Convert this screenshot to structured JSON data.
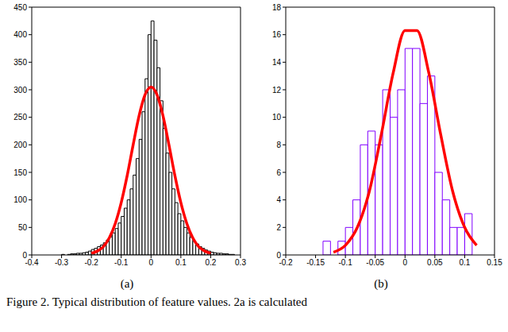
{
  "caption": "Figure 2. Typical distribution of feature values. 2a is calculated",
  "chart_data": [
    {
      "type": "histogram",
      "label": "(a)",
      "bins": [
        -0.3,
        -0.29,
        -0.28,
        -0.27,
        -0.26,
        -0.25,
        -0.24,
        -0.23,
        -0.22,
        -0.21,
        -0.2,
        -0.19,
        -0.18,
        -0.17,
        -0.16,
        -0.15,
        -0.14,
        -0.13,
        -0.12,
        -0.11,
        -0.1,
        -0.09,
        -0.08,
        -0.07,
        -0.06,
        -0.05,
        -0.04,
        -0.03,
        -0.02,
        -0.01,
        0,
        0.01,
        0.02,
        0.03,
        0.04,
        0.05,
        0.06,
        0.07,
        0.08,
        0.09,
        0.1,
        0.11,
        0.12,
        0.13,
        0.14,
        0.15,
        0.16,
        0.17,
        0.18,
        0.19,
        0.2,
        0.21,
        0.22,
        0.23,
        0.24,
        0.25,
        0.26,
        0.27,
        0.28
      ],
      "counts": [
        1,
        0,
        1,
        2,
        2,
        3,
        3,
        4,
        5,
        7,
        10,
        12,
        15,
        18,
        22,
        27,
        33,
        40,
        48,
        58,
        70,
        85,
        100,
        120,
        145,
        175,
        210,
        260,
        320,
        400,
        425,
        390,
        340,
        280,
        230,
        185,
        150,
        120,
        95,
        75,
        62,
        50,
        40,
        32,
        25,
        20,
        15,
        12,
        9,
        7,
        5,
        4,
        3,
        3,
        2,
        2,
        1,
        1
      ],
      "color": "#000000",
      "fit": {
        "type": "line",
        "color": "#ff0000",
        "x": [
          -0.2,
          -0.18,
          -0.16,
          -0.14,
          -0.12,
          -0.1,
          -0.08,
          -0.06,
          -0.04,
          -0.02,
          0,
          0.02,
          0.04,
          0.06,
          0.08,
          0.1,
          0.12,
          0.14,
          0.16,
          0.18,
          0.2
        ],
        "values": [
          3,
          7,
          15,
          31,
          57,
          95,
          144,
          200,
          253,
          291,
          305,
          291,
          253,
          200,
          144,
          95,
          57,
          31,
          15,
          7,
          3
        ]
      },
      "xlim": [
        -0.4,
        0.3
      ],
      "xticks": [
        -0.4,
        -0.3,
        -0.2,
        -0.1,
        0,
        0.1,
        0.2,
        0.3
      ],
      "ylim": [
        0,
        450
      ],
      "yticks": [
        0,
        50,
        100,
        150,
        200,
        250,
        300,
        350,
        400,
        450
      ]
    },
    {
      "type": "histogram",
      "label": "(b)",
      "bins": [
        -0.1375,
        -0.125,
        -0.1125,
        -0.1,
        -0.0875,
        -0.075,
        -0.0625,
        -0.05,
        -0.0375,
        -0.025,
        -0.0125,
        0,
        0.0125,
        0.025,
        0.0375,
        0.05,
        0.0625,
        0.075,
        0.0875,
        0.1,
        0.1125
      ],
      "counts": [
        1,
        0,
        1,
        2,
        4,
        8,
        9,
        8,
        12,
        10,
        12,
        15,
        15,
        11,
        13,
        6,
        4,
        2,
        2,
        3
      ],
      "color": "#8000ff",
      "fit": {
        "type": "line",
        "color": "#ff0000",
        "x": [
          -0.12,
          -0.1,
          -0.08,
          -0.06,
          -0.04,
          -0.02,
          0,
          0.02,
          0.04,
          0.06,
          0.08,
          0.1,
          0.12
        ],
        "values": [
          0.2,
          0.7,
          2.0,
          4.6,
          8.7,
          13.2,
          16.3,
          16.3,
          13.2,
          8.7,
          4.6,
          2.0,
          0.7
        ]
      },
      "xlim": [
        -0.2,
        0.15
      ],
      "xticks": [
        -0.2,
        -0.15,
        -0.1,
        -0.05,
        0,
        0.05,
        0.1,
        0.15
      ],
      "ylim": [
        0,
        18
      ],
      "yticks": [
        0,
        2,
        4,
        6,
        8,
        10,
        12,
        14,
        16,
        18
      ]
    }
  ]
}
